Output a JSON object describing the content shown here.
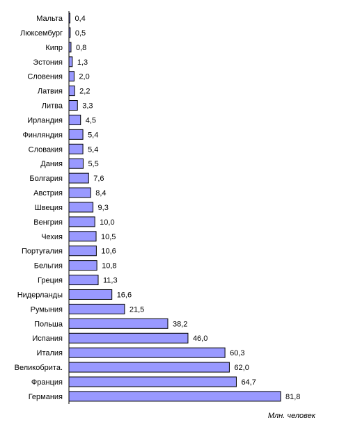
{
  "chart_data": {
    "type": "bar",
    "orientation": "horizontal",
    "categories": [
      "Мальта",
      "Люксембург",
      "Кипр",
      "Эстония",
      "Словения",
      "Латвия",
      "Литва",
      "Ирландия",
      "Финляндия",
      "Словакия",
      "Дания",
      "Болгария",
      "Австрия",
      "Швеция",
      "Венгрия",
      "Чехия",
      "Португалия",
      "Бельгия",
      "Греция",
      "Нидерланды",
      "Румыния",
      "Польша",
      "Испания",
      "Италия",
      "Великобрита.",
      "Франция",
      "Германия"
    ],
    "values": [
      0.4,
      0.5,
      0.8,
      1.3,
      2.0,
      2.2,
      3.3,
      4.5,
      5.4,
      5.4,
      5.5,
      7.6,
      8.4,
      9.3,
      10.0,
      10.5,
      10.6,
      10.8,
      11.3,
      16.6,
      21.5,
      38.2,
      46.0,
      60.3,
      62.0,
      64.7,
      81.8
    ],
    "value_labels": [
      "0,4",
      "0,5",
      "0,8",
      "1,3",
      "2,0",
      "2,2",
      "3,3",
      "4,5",
      "5,4",
      "5,4",
      "5,5",
      "7,6",
      "8,4",
      "9,3",
      "10,0",
      "10,5",
      "10,6",
      "10,8",
      "11,3",
      "16,6",
      "21,5",
      "38,2",
      "46,0",
      "60,3",
      "62,0",
      "64,7",
      "81,8"
    ],
    "unit_label": "Млн. человек",
    "xlim": [
      0,
      81.8
    ],
    "grid": false,
    "legend": "none"
  },
  "colors": {
    "bar_fill": "#9999ff",
    "bar_stroke": "#000000",
    "axis": "#000000",
    "text": "#000000",
    "background": "#ffffff"
  }
}
